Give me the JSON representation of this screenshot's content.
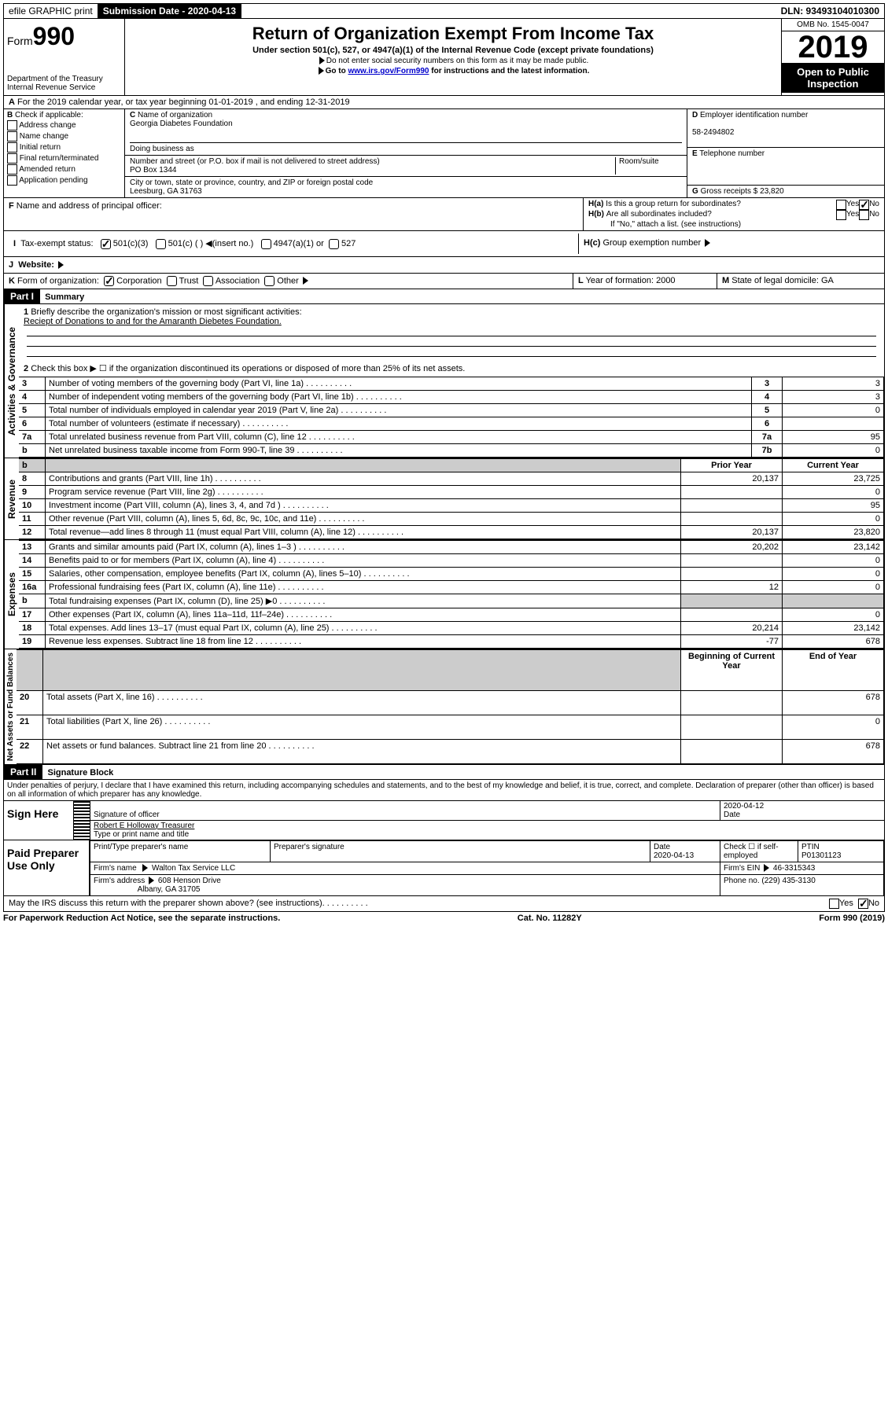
{
  "topbar": {
    "efile": "efile GRAPHIC print",
    "sub_date_label": "Submission Date - 2020-04-13",
    "dln": "DLN: 93493104010300"
  },
  "header": {
    "form_prefix": "Form",
    "form_num": "990",
    "dept": "Department of the Treasury\nInternal Revenue Service",
    "title": "Return of Organization Exempt From Income Tax",
    "subtitle": "Under section 501(c), 527, or 4947(a)(1) of the Internal Revenue Code (except private foundations)",
    "line1": "Do not enter social security numbers on this form as it may be made public.",
    "line2_pre": "Go to ",
    "line2_link": "www.irs.gov/Form990",
    "line2_post": " for instructions and the latest information.",
    "omb": "OMB No. 1545-0047",
    "year": "2019",
    "open": "Open to Public Inspection"
  },
  "rowA": "For the 2019 calendar year, or tax year beginning 01-01-2019   , and ending 12-31-2019",
  "boxB": {
    "label": "Check if applicable:",
    "items": [
      "Address change",
      "Name change",
      "Initial return",
      "Final return/terminated",
      "Amended return",
      "Application pending"
    ]
  },
  "boxC": {
    "name_label": "Name of organization",
    "name": "Georgia Diabetes Foundation",
    "dba_label": "Doing business as",
    "addr_label": "Number and street (or P.O. box if mail is not delivered to street address)",
    "room_label": "Room/suite",
    "addr": "PO Box 1344",
    "city_label": "City or town, state or province, country, and ZIP or foreign postal code",
    "city": "Leesburg, GA  31763"
  },
  "boxD": {
    "label": "Employer identification number",
    "val": "58-2494802"
  },
  "boxE": {
    "label": "Telephone number",
    "val": ""
  },
  "boxG": {
    "label": "Gross receipts $",
    "val": "23,820"
  },
  "boxF": {
    "label": "Name and address of principal officer:"
  },
  "boxH": {
    "ha": "Is this a group return for subordinates?",
    "hb": "Are all subordinates included?",
    "hb_note": "If \"No,\" attach a list. (see instructions)",
    "hc": "Group exemption number"
  },
  "rowI": {
    "label": "Tax-exempt status:",
    "opts": [
      "501(c)(3)",
      "501(c) (  )",
      "(insert no.)",
      "4947(a)(1) or",
      "527"
    ]
  },
  "rowJ": {
    "label": "Website:",
    "triangle": true
  },
  "rowK": {
    "label": "Form of organization:",
    "opts": [
      "Corporation",
      "Trust",
      "Association",
      "Other"
    ],
    "L_label": "Year of formation:",
    "L_val": "2000",
    "M_label": "State of legal domicile:",
    "M_val": "GA"
  },
  "part1": {
    "header": "Part I",
    "title": "Summary",
    "q1_label": "Briefly describe the organization's mission or most significant activities:",
    "q1_text": "Reciept of Donations to and for the Amaranth Diebetes Foundation.",
    "q2": "Check this box ▶ ☐  if the organization discontinued its operations or disposed of more than 25% of its net assets.",
    "rows_gov": [
      {
        "n": "3",
        "d": "Number of voting members of the governing body (Part VI, line 1a)",
        "box": "3",
        "val": "3"
      },
      {
        "n": "4",
        "d": "Number of independent voting members of the governing body (Part VI, line 1b)",
        "box": "4",
        "val": "3"
      },
      {
        "n": "5",
        "d": "Total number of individuals employed in calendar year 2019 (Part V, line 2a)",
        "box": "5",
        "val": "0"
      },
      {
        "n": "6",
        "d": "Total number of volunteers (estimate if necessary)",
        "box": "6",
        "val": ""
      },
      {
        "n": "7a",
        "d": "Total unrelated business revenue from Part VIII, column (C), line 12",
        "box": "7a",
        "val": "95"
      },
      {
        "n": "b",
        "d": "Net unrelated business taxable income from Form 990-T, line 39",
        "box": "7b",
        "val": "0"
      }
    ],
    "col_headers": {
      "prior": "Prior Year",
      "current": "Current Year"
    },
    "rows_rev": [
      {
        "n": "8",
        "d": "Contributions and grants (Part VIII, line 1h)",
        "p": "20,137",
        "c": "23,725"
      },
      {
        "n": "9",
        "d": "Program service revenue (Part VIII, line 2g)",
        "p": "",
        "c": "0"
      },
      {
        "n": "10",
        "d": "Investment income (Part VIII, column (A), lines 3, 4, and 7d )",
        "p": "",
        "c": "95"
      },
      {
        "n": "11",
        "d": "Other revenue (Part VIII, column (A), lines 5, 6d, 8c, 9c, 10c, and 11e)",
        "p": "",
        "c": "0"
      },
      {
        "n": "12",
        "d": "Total revenue—add lines 8 through 11 (must equal Part VIII, column (A), line 12)",
        "p": "20,137",
        "c": "23,820"
      }
    ],
    "rows_exp": [
      {
        "n": "13",
        "d": "Grants and similar amounts paid (Part IX, column (A), lines 1–3 )",
        "p": "20,202",
        "c": "23,142"
      },
      {
        "n": "14",
        "d": "Benefits paid to or for members (Part IX, column (A), line 4)",
        "p": "",
        "c": "0"
      },
      {
        "n": "15",
        "d": "Salaries, other compensation, employee benefits (Part IX, column (A), lines 5–10)",
        "p": "",
        "c": "0"
      },
      {
        "n": "16a",
        "d": "Professional fundraising fees (Part IX, column (A), line 11e)",
        "p": "12",
        "c": "0"
      },
      {
        "n": "b",
        "d": "Total fundraising expenses (Part IX, column (D), line 25) ▶0",
        "p": "grey",
        "c": "grey"
      },
      {
        "n": "17",
        "d": "Other expenses (Part IX, column (A), lines 11a–11d, 11f–24e)",
        "p": "",
        "c": "0"
      },
      {
        "n": "18",
        "d": "Total expenses. Add lines 13–17 (must equal Part IX, column (A), line 25)",
        "p": "20,214",
        "c": "23,142"
      },
      {
        "n": "19",
        "d": "Revenue less expenses. Subtract line 18 from line 12",
        "p": "-77",
        "c": "678"
      }
    ],
    "col_headers2": {
      "begin": "Beginning of Current Year",
      "end": "End of Year"
    },
    "rows_net": [
      {
        "n": "20",
        "d": "Total assets (Part X, line 16)",
        "p": "",
        "c": "678"
      },
      {
        "n": "21",
        "d": "Total liabilities (Part X, line 26)",
        "p": "",
        "c": "0"
      },
      {
        "n": "22",
        "d": "Net assets or fund balances. Subtract line 21 from line 20",
        "p": "",
        "c": "678"
      }
    ],
    "vlabels": {
      "gov": "Activities & Governance",
      "rev": "Revenue",
      "exp": "Expenses",
      "net": "Net Assets or Fund Balances"
    }
  },
  "part2": {
    "header": "Part II",
    "title": "Signature Block",
    "perjury": "Under penalties of perjury, I declare that I have examined this return, including accompanying schedules and statements, and to the best of my knowledge and belief, it is true, correct, and complete. Declaration of preparer (other than officer) is based on all information of which preparer has any knowledge.",
    "sign_here": "Sign Here",
    "sig_officer": "Signature of officer",
    "date_val": "2020-04-12",
    "date_label": "Date",
    "name_val": "Robert E Holloway  Treasurer",
    "name_label": "Type or print name and title",
    "paid": "Paid Preparer Use Only",
    "p_name_label": "Print/Type preparer's name",
    "p_sig_label": "Preparer's signature",
    "p_date_label": "Date",
    "p_date": "2020-04-13",
    "p_check": "Check ☐ if self-employed",
    "ptin_label": "PTIN",
    "ptin": "P01301123",
    "firm_name_label": "Firm's name",
    "firm_name": "Walton Tax Service LLC",
    "firm_ein_label": "Firm's EIN",
    "firm_ein": "46-3315343",
    "firm_addr_label": "Firm's address",
    "firm_addr": "608 Henson Drive",
    "firm_city": "Albany, GA  31705",
    "phone_label": "Phone no.",
    "phone": "(229) 435-3130",
    "discuss": "May the IRS discuss this return with the preparer shown above? (see instructions)"
  },
  "footer": {
    "left": "For Paperwork Reduction Act Notice, see the separate instructions.",
    "mid": "Cat. No. 11282Y",
    "right": "Form 990 (2019)"
  }
}
